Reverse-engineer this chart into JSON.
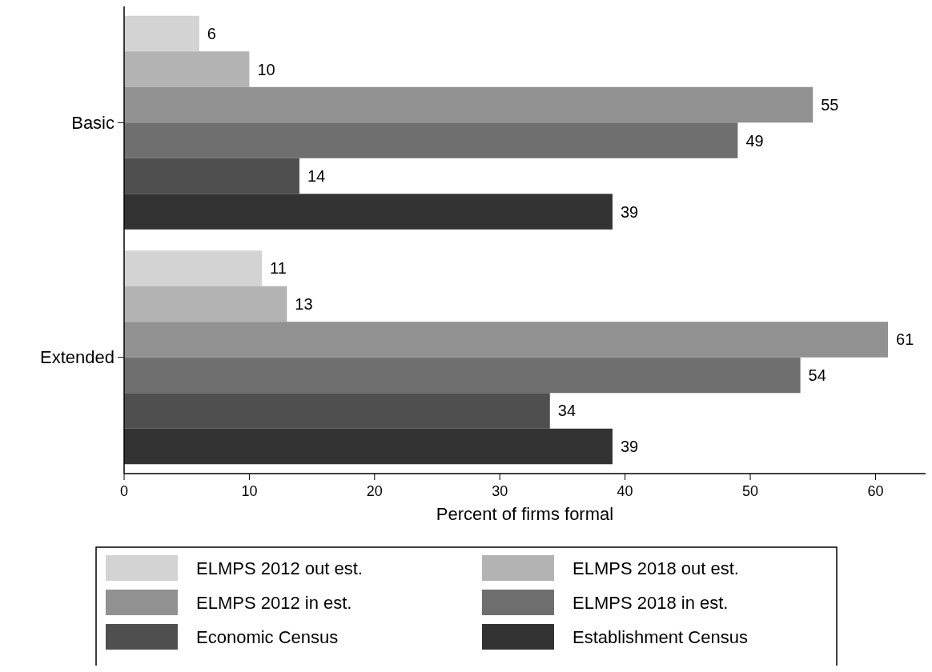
{
  "chart_data": {
    "type": "bar",
    "orientation": "horizontal",
    "categories": [
      "Basic",
      "Extended"
    ],
    "xlabel": "Percent of firms formal",
    "xlim": [
      0,
      64
    ],
    "xticks": [
      0,
      10,
      20,
      30,
      40,
      50,
      60
    ],
    "data_labels": true,
    "legend": "bottom",
    "series": [
      {
        "name": "ELMPS 2012 out est.",
        "color": "#d3d3d3",
        "values": [
          6,
          11
        ]
      },
      {
        "name": "ELMPS 2018 out est.",
        "color": "#b3b3b3",
        "values": [
          10,
          13
        ]
      },
      {
        "name": "ELMPS 2012 in est.",
        "color": "#919191",
        "values": [
          55,
          61
        ]
      },
      {
        "name": "ELMPS 2018 in est.",
        "color": "#6f6f6f",
        "values": [
          49,
          54
        ]
      },
      {
        "name": "Economic Census",
        "color": "#4f4f4f",
        "values": [
          14,
          34
        ]
      },
      {
        "name": "Establishment Census",
        "color": "#333333",
        "values": [
          39,
          39
        ]
      }
    ]
  }
}
